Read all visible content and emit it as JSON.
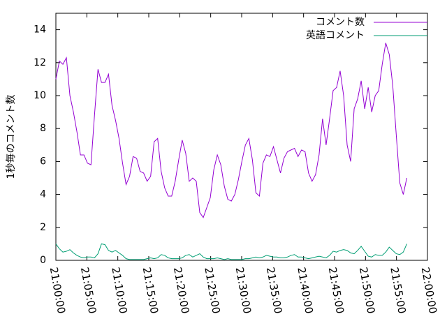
{
  "chart_data": {
    "type": "line",
    "ylabel": "1秒毎のコメント数",
    "x": [
      75600,
      75634,
      75668,
      75702,
      75736,
      75770,
      75804,
      75838,
      75872,
      75906,
      75940,
      75974,
      76008,
      76042,
      76076,
      76110,
      76144,
      76178,
      76212,
      76246,
      76280,
      76314,
      76348,
      76382,
      76416,
      76450,
      76484,
      76518,
      76552,
      76586,
      76620,
      76654,
      76688,
      76722,
      76756,
      76790,
      76824,
      76858,
      76892,
      76926,
      76960,
      76994,
      77028,
      77062,
      77096,
      77130,
      77164,
      77198,
      77232,
      77266,
      77300,
      77334,
      77368,
      77402,
      77436,
      77470,
      77504,
      77538,
      77572,
      77606,
      77640,
      77674,
      77708,
      77742,
      77776,
      77810,
      77844,
      77878,
      77912,
      77946,
      77980,
      78014,
      78048,
      78082,
      78116,
      78150,
      78184,
      78218,
      78252,
      78286,
      78320,
      78354,
      78388,
      78422,
      78456,
      78490,
      78524,
      78558,
      78592,
      78626,
      78660,
      78694,
      78728,
      78762,
      78796,
      78830,
      78864,
      78898,
      78932,
      78966,
      79000
    ],
    "series": [
      {
        "name": "コメント数",
        "color": "#9400d3",
        "values": [
          11,
          12.1,
          11.9,
          12.3,
          10,
          9,
          7.8,
          6.4,
          6.4,
          5.9,
          5.8,
          8.8,
          11.6,
          10.8,
          10.8,
          11.3,
          9.4,
          8.5,
          7.4,
          5.9,
          4.6,
          5.1,
          6.3,
          6.2,
          5.4,
          5.3,
          4.8,
          5.1,
          7.2,
          7.4,
          5.4,
          4.4,
          3.9,
          3.9,
          4.8,
          6.1,
          7.3,
          6.5,
          4.8,
          5.0,
          4.8,
          2.9,
          2.6,
          3.2,
          3.8,
          5.5,
          6.4,
          5.8,
          4.5,
          3.7,
          3.6,
          4.0,
          4.9,
          6.0,
          7.0,
          7.4,
          6.1,
          4.1,
          3.9,
          5.9,
          6.4,
          6.3,
          6.9,
          6.1,
          5.3,
          6.2,
          6.6,
          6.7,
          6.8,
          6.3,
          6.7,
          6.6,
          5.3,
          4.8,
          5.2,
          6.4,
          8.6,
          7.0,
          8.6,
          10.3,
          10.5,
          11.5,
          10.0,
          7.0,
          6.0,
          9.2,
          9.8,
          10.9,
          9.2,
          10.5,
          9.0,
          10.0,
          10.3,
          11.9,
          13.2,
          12.5,
          10.6,
          7.6,
          4.7,
          4.0,
          5.0
        ]
      },
      {
        "name": "英語コメント",
        "color": "#009e73",
        "values": [
          1.0,
          0.7,
          0.5,
          0.55,
          0.65,
          0.45,
          0.3,
          0.2,
          0.15,
          0.2,
          0.2,
          0.15,
          0.4,
          1.0,
          0.95,
          0.6,
          0.5,
          0.6,
          0.45,
          0.3,
          0.1,
          0.05,
          0.05,
          0.05,
          0.05,
          0.05,
          0.1,
          0.15,
          0.1,
          0.15,
          0.35,
          0.3,
          0.15,
          0.1,
          0.1,
          0.1,
          0.15,
          0.3,
          0.35,
          0.2,
          0.3,
          0.4,
          0.2,
          0.1,
          0.1,
          0.1,
          0.15,
          0.1,
          0.05,
          0.1,
          0.05,
          0.05,
          0.05,
          0.05,
          0.1,
          0.1,
          0.15,
          0.2,
          0.15,
          0.2,
          0.3,
          0.25,
          0.2,
          0.2,
          0.15,
          0.15,
          0.2,
          0.3,
          0.35,
          0.2,
          0.2,
          0.15,
          0.1,
          0.15,
          0.2,
          0.25,
          0.2,
          0.15,
          0.3,
          0.55,
          0.5,
          0.6,
          0.65,
          0.6,
          0.45,
          0.4,
          0.6,
          0.85,
          0.55,
          0.25,
          0.2,
          0.35,
          0.3,
          0.3,
          0.5,
          0.8,
          0.6,
          0.4,
          0.35,
          0.5,
          1.0
        ]
      }
    ],
    "xlim": [
      75600,
      79200
    ],
    "xticks": [
      {
        "value": 75600,
        "label": "21:00:00"
      },
      {
        "value": 75900,
        "label": "21:05:00"
      },
      {
        "value": 76200,
        "label": "21:10:00"
      },
      {
        "value": 76500,
        "label": "21:15:00"
      },
      {
        "value": 76800,
        "label": "21:20:00"
      },
      {
        "value": 77100,
        "label": "21:25:00"
      },
      {
        "value": 77400,
        "label": "21:30:00"
      },
      {
        "value": 77700,
        "label": "21:35:00"
      },
      {
        "value": 78000,
        "label": "21:40:00"
      },
      {
        "value": 78300,
        "label": "21:45:00"
      },
      {
        "value": 78600,
        "label": "21:50:00"
      },
      {
        "value": 78900,
        "label": "21:55:00"
      },
      {
        "value": 79200,
        "label": "22:00:00"
      }
    ],
    "ylim": [
      0,
      15
    ],
    "yticks": [
      0,
      2,
      4,
      6,
      8,
      10,
      12,
      14
    ],
    "legend": "top-right",
    "grid": false
  }
}
